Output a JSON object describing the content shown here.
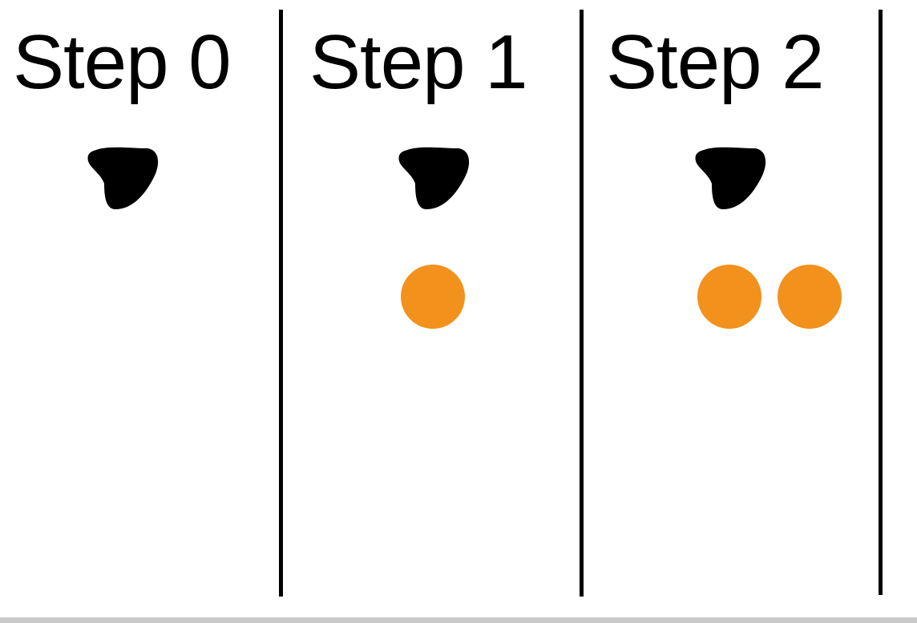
{
  "steps": [
    {
      "title": "Step 0",
      "blob_icon": "black-blob-shape",
      "orange_dots": 0
    },
    {
      "title": "Step 1",
      "blob_icon": "black-blob-shape",
      "orange_dots": 1
    },
    {
      "title": "Step 2",
      "blob_icon": "black-blob-shape",
      "orange_dots": 2
    }
  ],
  "colors": {
    "blob": "#000000",
    "dot": "#f2911b",
    "divider": "#000000",
    "background": "#ffffff"
  }
}
